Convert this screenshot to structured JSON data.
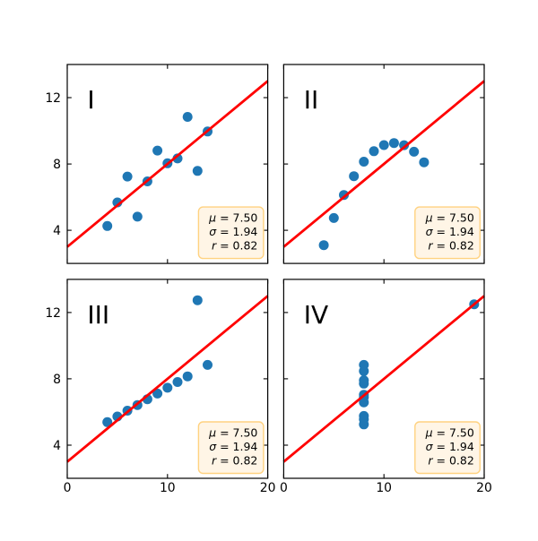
{
  "figure": {
    "background_color": "#ffffff",
    "marker_color": "#1f77b4",
    "fit_line_color": "#ff0000",
    "axis_color": "#000000",
    "stats_box": {
      "fill_color": "#fff5e6",
      "border_color": "#ffd280"
    }
  },
  "chart_data": [
    {
      "type": "scatter",
      "title": "I",
      "x": [
        10,
        8,
        13,
        9,
        11,
        14,
        6,
        4,
        12,
        7,
        5
      ],
      "y": [
        8.04,
        6.95,
        7.58,
        8.81,
        8.33,
        9.96,
        7.24,
        4.26,
        10.84,
        4.82,
        5.68
      ],
      "fit_line": {
        "slope": 0.5,
        "intercept": 3.0
      },
      "stats_lines": [
        {
          "symbol": "μ",
          "text": " = 7.50"
        },
        {
          "symbol": "σ",
          "text": " = 1.94"
        },
        {
          "symbol": "r",
          "text": " = 0.82"
        }
      ],
      "xlim": [
        0,
        20
      ],
      "ylim": [
        2,
        14
      ],
      "xticks": [
        0,
        10,
        20
      ],
      "yticks": [
        4,
        8,
        12
      ],
      "x_tick_labels": [
        "0",
        "10",
        "20"
      ],
      "y_tick_labels": [
        "4",
        "8",
        "12"
      ],
      "show_x_tick_labels": false,
      "show_y_tick_labels": true,
      "xlabel": "",
      "ylabel": "",
      "grid": false
    },
    {
      "type": "scatter",
      "title": "II",
      "x": [
        10,
        8,
        13,
        9,
        11,
        14,
        6,
        4,
        12,
        7,
        5
      ],
      "y": [
        9.14,
        8.14,
        8.74,
        8.77,
        9.26,
        8.1,
        6.13,
        3.1,
        9.13,
        7.26,
        4.74
      ],
      "fit_line": {
        "slope": 0.5,
        "intercept": 3.0
      },
      "stats_lines": [
        {
          "symbol": "μ",
          "text": " = 7.50"
        },
        {
          "symbol": "σ",
          "text": " = 1.94"
        },
        {
          "symbol": "r",
          "text": " = 0.82"
        }
      ],
      "xlim": [
        0,
        20
      ],
      "ylim": [
        2,
        14
      ],
      "xticks": [
        0,
        10,
        20
      ],
      "yticks": [
        4,
        8,
        12
      ],
      "x_tick_labels": [
        "0",
        "10",
        "20"
      ],
      "y_tick_labels": [
        "4",
        "8",
        "12"
      ],
      "show_x_tick_labels": false,
      "show_y_tick_labels": false,
      "xlabel": "",
      "ylabel": "",
      "grid": false
    },
    {
      "type": "scatter",
      "title": "III",
      "x": [
        10,
        8,
        13,
        9,
        11,
        14,
        6,
        4,
        12,
        7,
        5
      ],
      "y": [
        7.46,
        6.77,
        12.74,
        7.11,
        7.81,
        8.84,
        6.08,
        5.39,
        8.15,
        6.42,
        5.73
      ],
      "fit_line": {
        "slope": 0.5,
        "intercept": 3.0
      },
      "stats_lines": [
        {
          "symbol": "μ",
          "text": " = 7.50"
        },
        {
          "symbol": "σ",
          "text": " = 1.94"
        },
        {
          "symbol": "r",
          "text": " = 0.82"
        }
      ],
      "xlim": [
        0,
        20
      ],
      "ylim": [
        2,
        14
      ],
      "xticks": [
        0,
        10,
        20
      ],
      "yticks": [
        4,
        8,
        12
      ],
      "x_tick_labels": [
        "0",
        "10",
        "20"
      ],
      "y_tick_labels": [
        "4",
        "8",
        "12"
      ],
      "show_x_tick_labels": true,
      "show_y_tick_labels": true,
      "xlabel": "",
      "ylabel": "",
      "grid": false
    },
    {
      "type": "scatter",
      "title": "IV",
      "x": [
        8,
        8,
        8,
        8,
        8,
        8,
        8,
        19,
        8,
        8,
        8
      ],
      "y": [
        6.58,
        5.76,
        7.71,
        8.84,
        8.47,
        7.04,
        5.25,
        12.5,
        5.56,
        7.91,
        6.89
      ],
      "fit_line": {
        "slope": 0.5,
        "intercept": 3.0
      },
      "stats_lines": [
        {
          "symbol": "μ",
          "text": " = 7.50"
        },
        {
          "symbol": "σ",
          "text": " = 1.94"
        },
        {
          "symbol": "r",
          "text": " = 0.82"
        }
      ],
      "xlim": [
        0,
        20
      ],
      "ylim": [
        2,
        14
      ],
      "xticks": [
        0,
        10,
        20
      ],
      "yticks": [
        4,
        8,
        12
      ],
      "x_tick_labels": [
        "0",
        "10",
        "20"
      ],
      "y_tick_labels": [
        "4",
        "8",
        "12"
      ],
      "show_x_tick_labels": true,
      "show_y_tick_labels": false,
      "xlabel": "",
      "ylabel": "",
      "grid": false
    }
  ]
}
